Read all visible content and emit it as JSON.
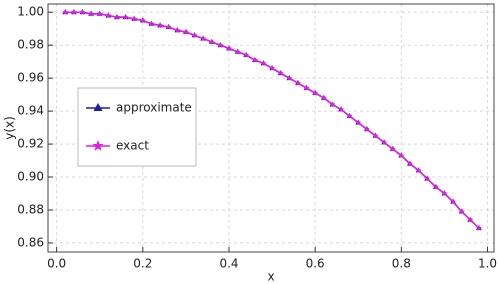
{
  "chart_data": {
    "type": "line",
    "xlabel": "x",
    "ylabel": "y(x)",
    "x": [
      0.02,
      0.04,
      0.06,
      0.08,
      0.1,
      0.12,
      0.14,
      0.16,
      0.18,
      0.2,
      0.22,
      0.24,
      0.26,
      0.28,
      0.3,
      0.32,
      0.34,
      0.36,
      0.38,
      0.4,
      0.42,
      0.44,
      0.46,
      0.48,
      0.5,
      0.52,
      0.54,
      0.56,
      0.58,
      0.6,
      0.62,
      0.64,
      0.66,
      0.68,
      0.7,
      0.72,
      0.74,
      0.76,
      0.78,
      0.8,
      0.82,
      0.84,
      0.86,
      0.88,
      0.9,
      0.92,
      0.94,
      0.96,
      0.98
    ],
    "series": [
      {
        "name": "approximate",
        "color": "#1c1ca8",
        "marker": "triangle",
        "values": [
          1.0,
          1.0,
          1.0,
          0.999,
          0.999,
          0.998,
          0.997,
          0.997,
          0.996,
          0.995,
          0.993,
          0.992,
          0.991,
          0.989,
          0.988,
          0.986,
          0.984,
          0.982,
          0.98,
          0.978,
          0.976,
          0.974,
          0.971,
          0.969,
          0.966,
          0.963,
          0.96,
          0.957,
          0.954,
          0.951,
          0.948,
          0.944,
          0.941,
          0.937,
          0.933,
          0.929,
          0.925,
          0.921,
          0.917,
          0.913,
          0.908,
          0.904,
          0.899,
          0.894,
          0.89,
          0.885,
          0.879,
          0.874,
          0.869
        ]
      },
      {
        "name": "exact",
        "color": "#e020e0",
        "marker": "star",
        "values": [
          1.0,
          1.0,
          1.0,
          0.999,
          0.999,
          0.998,
          0.997,
          0.997,
          0.996,
          0.995,
          0.993,
          0.992,
          0.991,
          0.989,
          0.988,
          0.986,
          0.984,
          0.982,
          0.98,
          0.978,
          0.976,
          0.974,
          0.971,
          0.969,
          0.966,
          0.963,
          0.96,
          0.957,
          0.954,
          0.951,
          0.948,
          0.944,
          0.941,
          0.937,
          0.933,
          0.929,
          0.925,
          0.921,
          0.917,
          0.913,
          0.908,
          0.904,
          0.899,
          0.894,
          0.89,
          0.885,
          0.879,
          0.874,
          0.869
        ]
      }
    ],
    "xlim": [
      -0.02,
      1.015
    ],
    "xticks": [
      {
        "value": 0,
        "label": "0.0"
      },
      0.2,
      0.4,
      0.6,
      0.8,
      {
        "value": 1,
        "label": "1.0"
      }
    ],
    "ylim": [
      0.8545,
      1.005
    ],
    "yticks": [
      0.86,
      0.88,
      {
        "value": 0.9,
        "label": "0.90"
      },
      0.92,
      0.94,
      0.96,
      0.98,
      {
        "value": 1,
        "label": "1.00"
      }
    ],
    "grid": true,
    "legend": "left"
  }
}
